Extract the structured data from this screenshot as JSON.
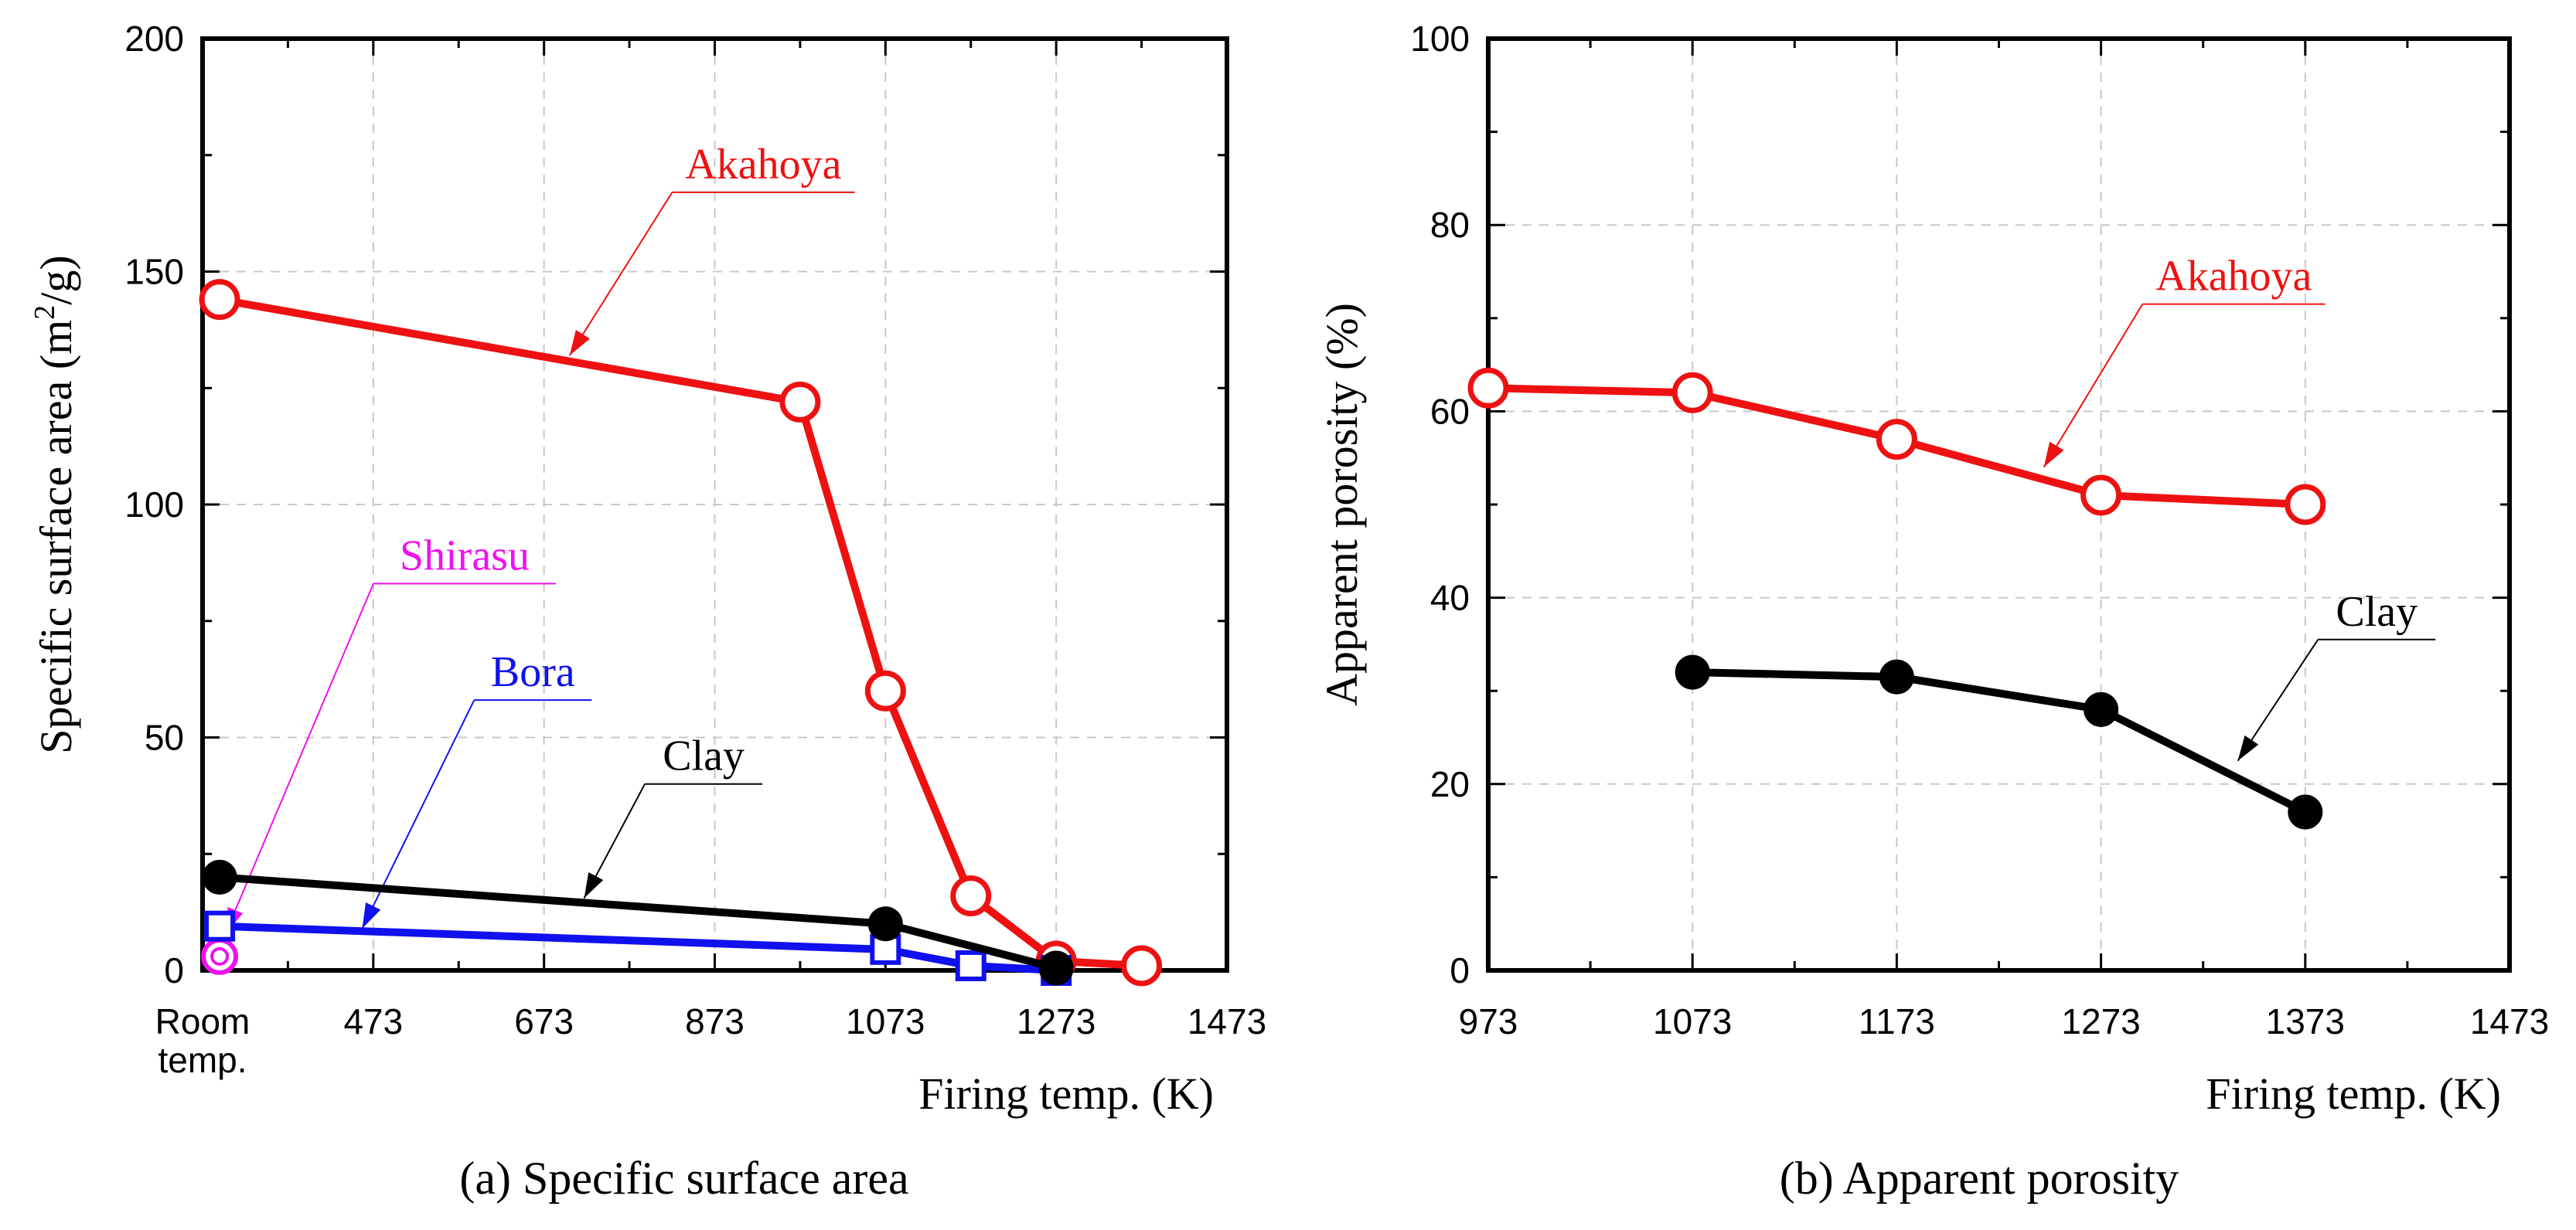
{
  "chart_data": [
    {
      "type": "line",
      "title": "",
      "caption": "(a) Specific surface area",
      "xlabel": "Firing temp.  (K)",
      "ylabel_main": "Specific surface area  (m",
      "ylabel_sup": "2",
      "ylabel_end": "/g)",
      "xlim": [
        273,
        1473
      ],
      "ylim": [
        0,
        200
      ],
      "xticks": [
        273,
        473,
        673,
        873,
        1073,
        1273,
        1473
      ],
      "xtick_labels": [
        "Room",
        "473",
        "673",
        "873",
        "1073",
        "1273",
        "1473"
      ],
      "xtick_label_line2": "temp.",
      "yticks": [
        0,
        50,
        100,
        150,
        200
      ],
      "ytick_labels": [
        "0",
        "50",
        "100",
        "150",
        "200"
      ],
      "grid": true,
      "series": [
        {
          "name": "Akahoya",
          "color": "#ee1111",
          "marker": "open-circle",
          "x": [
            293,
            973,
            1073,
            1173,
            1273,
            1373
          ],
          "y": [
            144,
            122,
            60,
            16,
            2,
            1
          ],
          "label_text": "Akahoya",
          "label_x": 930,
          "label_y": 170,
          "arrow_tip_x": 703,
          "arrow_tip_y": 132
        },
        {
          "name": "Shirasu",
          "color": "#ee11ee",
          "marker": "open-circle-dot",
          "x": [
            293
          ],
          "y": [
            3
          ],
          "label_text": "Shirasu",
          "label_x": 580,
          "label_y": 86,
          "arrow_tip_x": 300,
          "arrow_tip_y": 8
        },
        {
          "name": "Bora",
          "color": "#1111ee",
          "marker": "open-square",
          "x": [
            293,
            1073,
            1173,
            1273
          ],
          "y": [
            9.5,
            4.5,
            1,
            0
          ],
          "label_text": "Bora",
          "label_x": 660,
          "label_y": 61,
          "arrow_tip_x": 460,
          "arrow_tip_y": 9
        },
        {
          "name": "Clay",
          "color": "#000000",
          "marker": "filled-circle",
          "x": [
            293,
            1073,
            1273
          ],
          "y": [
            20,
            10,
            0.5
          ],
          "label_text": "Clay",
          "label_x": 860,
          "label_y": 43,
          "arrow_tip_x": 720,
          "arrow_tip_y": 15.5
        }
      ]
    },
    {
      "type": "line",
      "title": "",
      "caption": "(b) Apparent porosity",
      "xlabel": "Firing temp.  (K)",
      "ylabel_main": "Apparent porosity  (%)",
      "xlim": [
        973,
        1473
      ],
      "ylim": [
        0,
        100
      ],
      "xticks": [
        973,
        1073,
        1173,
        1273,
        1373,
        1473
      ],
      "xtick_labels": [
        "973",
        "1073",
        "1173",
        "1273",
        "1373",
        "1473"
      ],
      "yticks": [
        0,
        20,
        40,
        60,
        80,
        100
      ],
      "ytick_labels": [
        "0",
        "20",
        "40",
        "60",
        "80",
        "100"
      ],
      "grid": true,
      "series": [
        {
          "name": "Akahoya",
          "color": "#ee1111",
          "marker": "open-circle",
          "x": [
            973,
            1073,
            1173,
            1273,
            1373
          ],
          "y": [
            62.5,
            62,
            57,
            51,
            50
          ],
          "label_text": "Akahoya",
          "label_x": 1338,
          "label_y": 73,
          "arrow_tip_x": 1245,
          "arrow_tip_y": 54
        },
        {
          "name": "Clay",
          "color": "#000000",
          "marker": "filled-circle",
          "x": [
            1073,
            1173,
            1273,
            1373
          ],
          "y": [
            32,
            31.5,
            28,
            17
          ],
          "label_text": "Clay",
          "label_x": 1408,
          "label_y": 37,
          "arrow_tip_x": 1340,
          "arrow_tip_y": 22.5
        }
      ]
    }
  ]
}
